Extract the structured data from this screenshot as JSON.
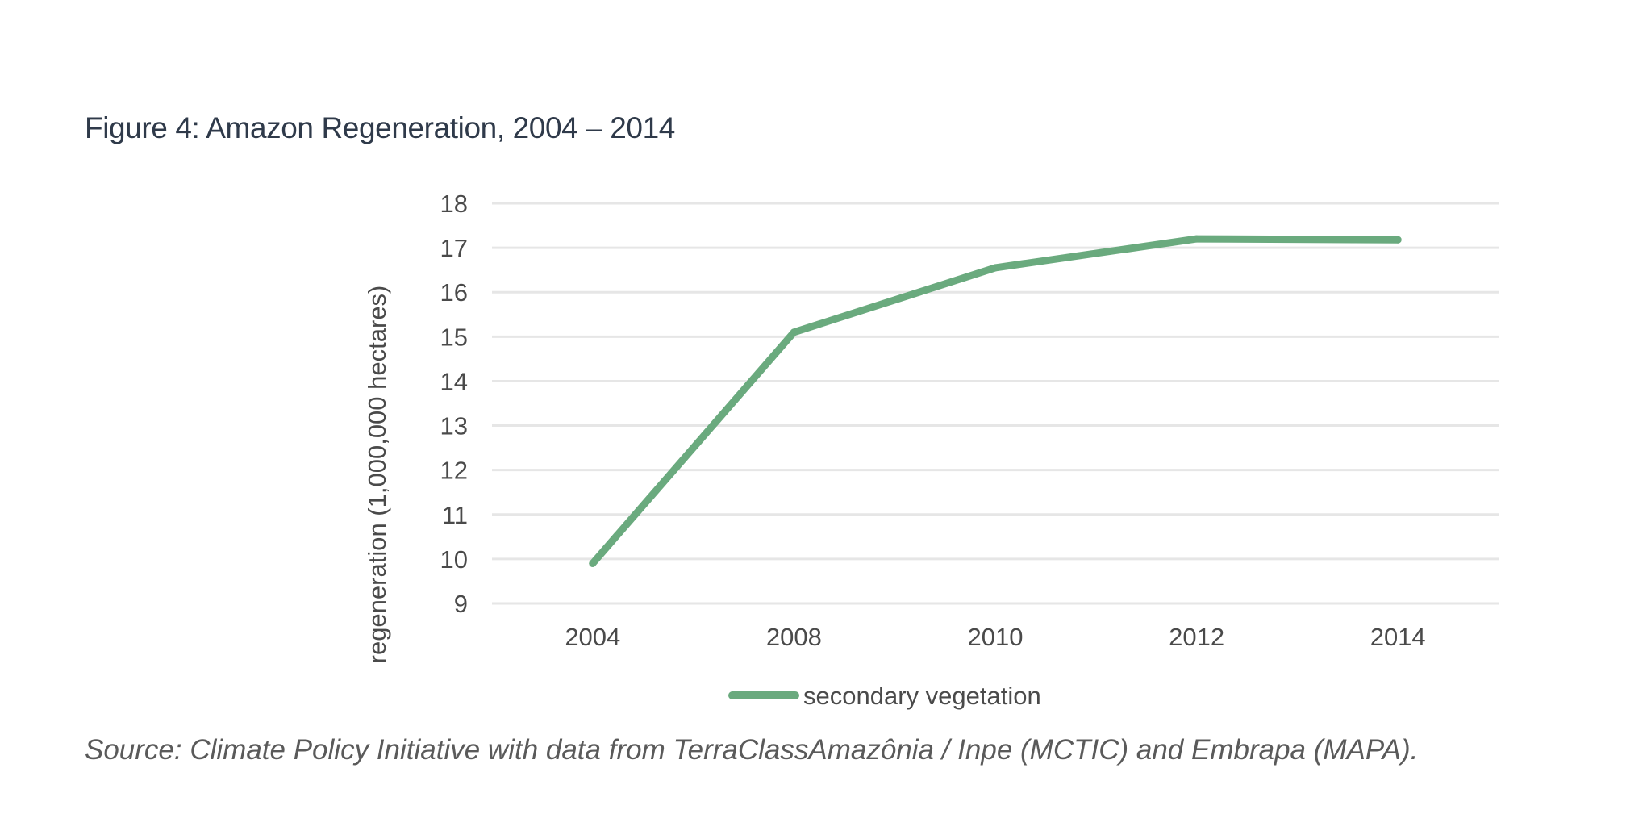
{
  "figure": {
    "title": "Figure 4: Amazon Regeneration, 2004 – 2014",
    "source": "Source: Climate Policy Initiative with data from TerraClassAmazônia / Inpe (MCTIC) and Embrapa (MAPA)."
  },
  "chart_data": {
    "type": "line",
    "categories": [
      "2004",
      "2008",
      "2010",
      "2012",
      "2014"
    ],
    "series": [
      {
        "name": "secondary vegetation",
        "values": [
          9.9,
          15.1,
          16.55,
          17.2,
          17.18
        ],
        "color": "#6aaa7e"
      }
    ],
    "xlabel": "",
    "ylabel": "regeneration (1,000,000 hectares)",
    "ylim": [
      9,
      18
    ],
    "yticks": [
      9,
      10,
      11,
      12,
      13,
      14,
      15,
      16,
      17,
      18
    ],
    "grid": true,
    "grid_color": "#e6e6e6",
    "legend": "bottom-center"
  }
}
